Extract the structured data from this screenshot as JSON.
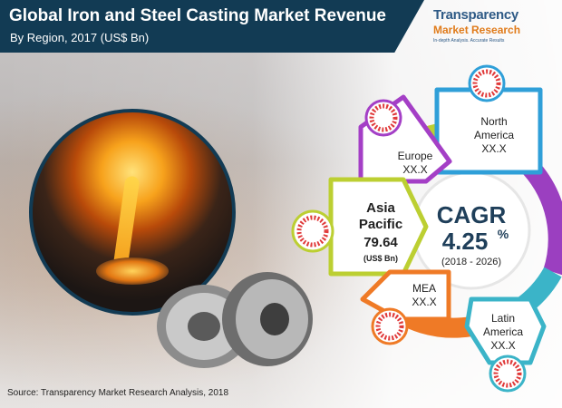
{
  "header": {
    "title": "Global Iron and Steel Casting Market Revenue",
    "subtitle": "By Region, 2017 (US$ Bn)"
  },
  "logo": {
    "line1": "Transparency",
    "line2": "Market Research",
    "tagline": "In-depth Analysis. Accurate Results"
  },
  "source": "Source: Transparency Market Research Analysis, 2018",
  "cagr": {
    "label": "CAGR",
    "value": "4.25",
    "unit": "%",
    "period": "(2018 - 2026)"
  },
  "colors": {
    "north_america": "#2f9fd8",
    "europe": "#a43fc6",
    "asia_pacific": "#bccf32",
    "mea": "#ef7a26",
    "latin_america": "#3bb4c8",
    "ring_red": "#e03a3a",
    "title_band": "#123b54"
  },
  "chart_data": {
    "type": "table",
    "title": "Global Iron and Steel Casting Market Revenue",
    "subtitle": "By Region, 2017 (US$ Bn)",
    "regions": [
      {
        "name_line1": "North",
        "name_line2": "America",
        "value": "XX.X"
      },
      {
        "name_line1": "Europe",
        "name_line2": "",
        "value": "XX.X"
      },
      {
        "name_line1": "Asia",
        "name_line2": "Pacific",
        "value": "79.64",
        "unit": "(US$ Bn)"
      },
      {
        "name_line1": "MEA",
        "name_line2": "",
        "value": "XX.X"
      },
      {
        "name_line1": "Latin",
        "name_line2": "America",
        "value": "XX.X"
      }
    ],
    "cagr": "4.25%",
    "cagr_period": "(2018 - 2026)"
  }
}
